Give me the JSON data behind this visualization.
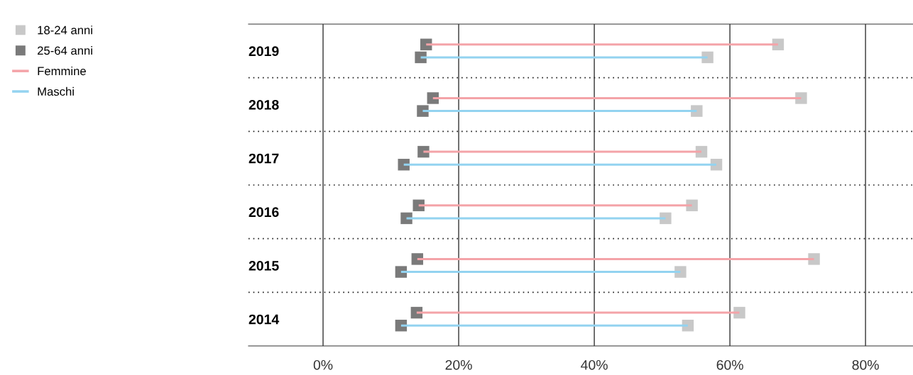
{
  "chart_data": {
    "type": "bar",
    "orientation": "horizontal",
    "categories": [
      "2019",
      "2018",
      "2017",
      "2016",
      "2015",
      "2014"
    ],
    "xlim": [
      -11,
      87
    ],
    "xticks": [
      {
        "value": 0,
        "label": "0%"
      },
      {
        "value": 20,
        "label": "20%"
      },
      {
        "value": 40,
        "label": "40%"
      },
      {
        "value": 60,
        "label": "60%"
      },
      {
        "value": 80,
        "label": "80%"
      }
    ],
    "grid": "x",
    "legend": "top left",
    "series": [
      {
        "name": "Femmine",
        "color": "#f4a3a8",
        "base": [
          15.2,
          16.2,
          14.8,
          14.1,
          13.9,
          13.8
        ],
        "values": [
          51.9,
          54.3,
          41.0,
          40.3,
          58.5,
          47.6
        ]
      },
      {
        "name": "Maschi",
        "color": "#93d3f0",
        "base": [
          14.4,
          14.7,
          11.9,
          12.3,
          11.5,
          11.5
        ],
        "values": [
          42.3,
          40.4,
          46.1,
          38.2,
          41.2,
          42.3
        ]
      },
      {
        "name": "18-24 anni",
        "type": "scatter",
        "marker": "square",
        "color": "#c8c8c8",
        "values": [
          67.1,
          70.5,
          55.8,
          54.4,
          72.4,
          61.4
        ]
      },
      {
        "type": "scatter",
        "marker": "square",
        "color": "#c8c8c8",
        "values": [
          56.7,
          55.1,
          58.0,
          50.5,
          52.7,
          53.8
        ]
      },
      {
        "name": "25-64 anni",
        "type": "scatter",
        "marker": "square",
        "color": "#7a7a7a",
        "values": [
          15.2,
          16.2,
          14.8,
          14.1,
          13.9,
          13.8
        ]
      },
      {
        "type": "scatter",
        "marker": "square",
        "color": "#7a7a7a",
        "values": [
          14.4,
          14.7,
          11.9,
          12.3,
          11.5,
          11.5
        ]
      }
    ]
  }
}
